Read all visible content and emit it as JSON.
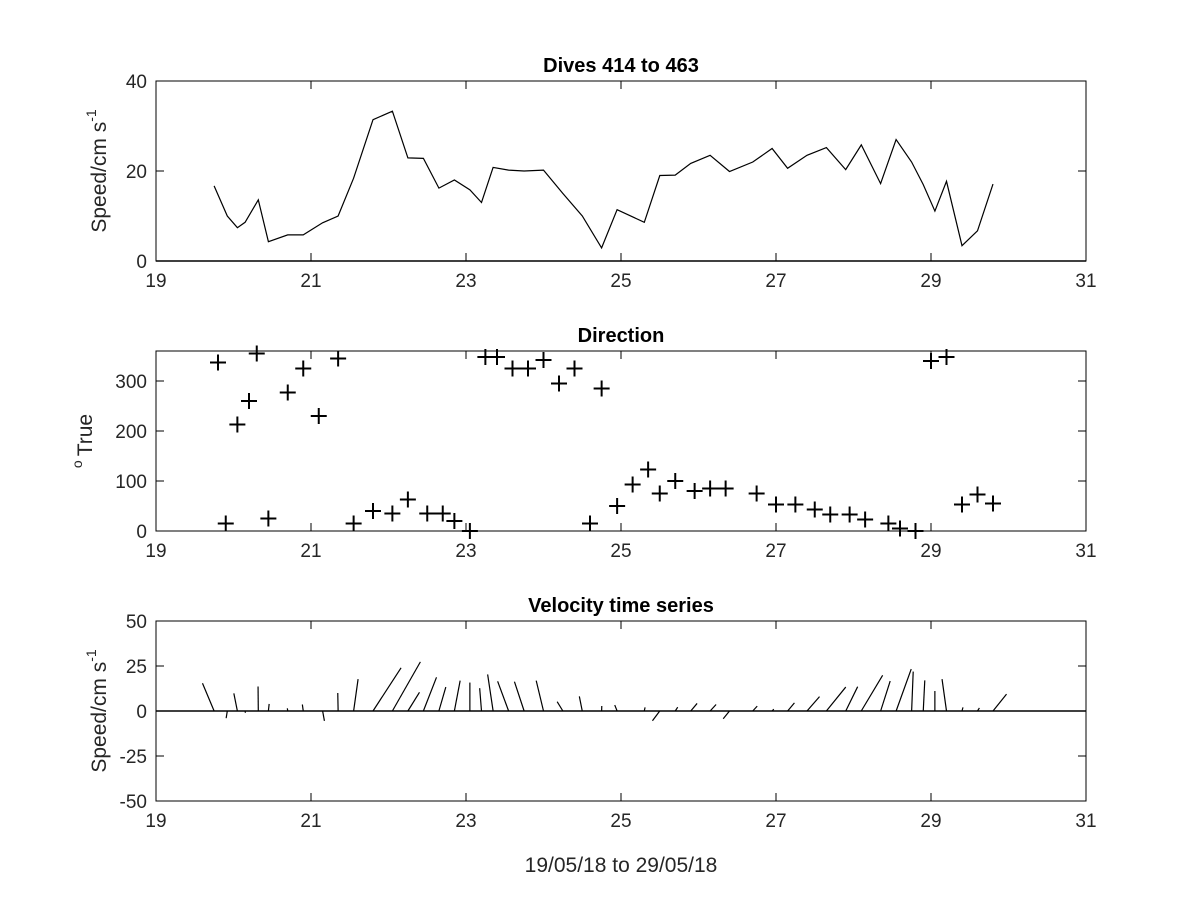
{
  "chart_data": [
    {
      "type": "line",
      "title": "Dives 414 to 463",
      "ylabel": "Speed/cm s",
      "ylabel_sup": "-1",
      "xlim": [
        19,
        31
      ],
      "ylim": [
        0,
        40
      ],
      "xticks": [
        "19",
        "21",
        "23",
        "25",
        "27",
        "29",
        "31"
      ],
      "yticks": [
        "0",
        "20",
        "40"
      ],
      "zero_line": true,
      "x": [
        19.75,
        19.92,
        20.05,
        20.15,
        20.32,
        20.45,
        20.7,
        20.9,
        21.15,
        21.35,
        21.55,
        21.8,
        22.05,
        22.25,
        22.45,
        22.65,
        22.85,
        23.05,
        23.2,
        23.35,
        23.55,
        23.75,
        24.0,
        24.25,
        24.5,
        24.75,
        24.95,
        25.3,
        25.5,
        25.7,
        25.9,
        26.15,
        26.4,
        26.7,
        26.95,
        27.15,
        27.4,
        27.65,
        27.9,
        28.1,
        28.35,
        28.55,
        28.75,
        28.9,
        29.05,
        29.2,
        29.4,
        29.6,
        29.8
      ],
      "y": [
        16.7,
        10.0,
        7.4,
        8.6,
        13.6,
        4.3,
        5.8,
        5.8,
        8.5,
        10.0,
        18.4,
        31.4,
        33.3,
        22.9,
        22.8,
        16.2,
        18.0,
        15.8,
        13.0,
        20.8,
        20.2,
        20.0,
        20.2,
        15.0,
        10.0,
        2.9,
        11.4,
        8.6,
        19.0,
        19.1,
        21.7,
        23.5,
        19.9,
        22.0,
        25.0,
        20.6,
        23.5,
        25.2,
        20.3,
        25.8,
        17.2,
        27.0,
        22.0,
        17.0,
        11.1,
        17.7,
        3.4,
        6.7,
        17.1
      ]
    },
    {
      "type": "scatter",
      "title": "Direction",
      "ylabel": "True",
      "ylabel_pre": "o",
      "xlim": [
        19,
        31
      ],
      "ylim": [
        0,
        360
      ],
      "xticks": [
        "19",
        "21",
        "23",
        "25",
        "27",
        "29",
        "31"
      ],
      "yticks": [
        "0",
        "100",
        "200",
        "300"
      ],
      "marker": "+",
      "x": [
        19.8,
        19.9,
        20.05,
        20.2,
        20.3,
        20.45,
        20.7,
        20.9,
        21.1,
        21.35,
        21.55,
        21.8,
        22.05,
        22.25,
        22.5,
        22.7,
        22.85,
        23.05,
        23.25,
        23.4,
        23.6,
        23.8,
        24.0,
        24.2,
        24.4,
        24.6,
        24.75,
        24.95,
        25.15,
        25.35,
        25.5,
        25.7,
        25.95,
        26.15,
        26.35,
        26.75,
        27.0,
        27.25,
        27.5,
        27.7,
        27.95,
        28.15,
        28.45,
        28.6,
        28.8,
        29.0,
        29.2,
        29.4,
        29.6,
        29.8
      ],
      "y": [
        337,
        15,
        213,
        260,
        355,
        25,
        277,
        325,
        230,
        345,
        15,
        40,
        35,
        63,
        35,
        35,
        20,
        0,
        348,
        348,
        325,
        325,
        342,
        295,
        325,
        15,
        285,
        50,
        93,
        123,
        75,
        100,
        80,
        85,
        85,
        75,
        53,
        53,
        43,
        33,
        33,
        23,
        15,
        5,
        0,
        340,
        348,
        53,
        73,
        55
      ]
    },
    {
      "type": "stick",
      "title": "Velocity time series",
      "ylabel": "Speed/cm s",
      "ylabel_sup": "-1",
      "xlabel": "19/05/18 to 29/05/18",
      "xlim": [
        19,
        31
      ],
      "ylim": [
        -50,
        50
      ],
      "xticks": [
        "19",
        "21",
        "23",
        "25",
        "27",
        "29",
        "31"
      ],
      "yticks": [
        "50",
        "25",
        "0",
        "-25",
        "-50"
      ],
      "zero_line": true,
      "sticks": [
        {
          "x": 19.75,
          "u": -0.42,
          "v": 15.4
        },
        {
          "x": 19.92,
          "u": 0.16,
          "v": -4.0
        },
        {
          "x": 20.05,
          "u": -0.2,
          "v": 9.8
        },
        {
          "x": 20.15,
          "u": -0.13,
          "v": -1.0
        },
        {
          "x": 20.32,
          "u": -0.01,
          "v": 13.6
        },
        {
          "x": 20.45,
          "u": 0.11,
          "v": 3.9
        },
        {
          "x": 20.7,
          "u": -0.16,
          "v": 1.5
        },
        {
          "x": 20.9,
          "u": -0.14,
          "v": 3.6
        },
        {
          "x": 21.15,
          "u": -0.18,
          "v": -5.5
        },
        {
          "x": 21.35,
          "u": -0.02,
          "v": 10.0
        },
        {
          "x": 21.55,
          "u": 0.14,
          "v": 17.7
        },
        {
          "x": 21.8,
          "u": 0.65,
          "v": 24.0
        },
        {
          "x": 22.05,
          "u": 0.57,
          "v": 27.3
        },
        {
          "x": 22.25,
          "u": 0.62,
          "v": 10.4
        },
        {
          "x": 22.45,
          "u": 0.39,
          "v": 18.7
        },
        {
          "x": 22.65,
          "u": 0.29,
          "v": 13.3
        },
        {
          "x": 22.85,
          "u": 0.19,
          "v": 16.9
        },
        {
          "x": 23.05,
          "u": 0.0,
          "v": 15.8
        },
        {
          "x": 23.2,
          "u": -0.08,
          "v": 12.7
        },
        {
          "x": 23.35,
          "u": -0.15,
          "v": 20.3
        },
        {
          "x": 23.55,
          "u": -0.37,
          "v": 16.5
        },
        {
          "x": 23.75,
          "u": -0.33,
          "v": 16.3
        },
        {
          "x": 24.0,
          "u": -0.24,
          "v": 16.9
        },
        {
          "x": 24.25,
          "u": -0.61,
          "v": 5.2
        },
        {
          "x": 24.5,
          "u": -0.2,
          "v": 8.1
        },
        {
          "x": 24.75,
          "u": 0.03,
          "v": 2.8
        },
        {
          "x": 24.95,
          "u": -0.4,
          "v": 3.3
        },
        {
          "x": 25.3,
          "u": 0.23,
          "v": 2.0
        },
        {
          "x": 25.5,
          "u": 0.75,
          "v": -5.4
        },
        {
          "x": 25.7,
          "u": 0.65,
          "v": 2.1
        },
        {
          "x": 25.9,
          "u": 0.84,
          "v": 4.2
        },
        {
          "x": 26.15,
          "u": 0.92,
          "v": 3.6
        },
        {
          "x": 26.4,
          "u": 0.81,
          "v": -4.3
        },
        {
          "x": 26.7,
          "u": 0.92,
          "v": 2.7
        },
        {
          "x": 26.95,
          "u": 0.9,
          "v": 1.0
        },
        {
          "x": 27.15,
          "u": 0.84,
          "v": 4.5
        },
        {
          "x": 27.4,
          "u": 0.87,
          "v": 8.0
        },
        {
          "x": 27.65,
          "u": 0.81,
          "v": 13.3
        },
        {
          "x": 27.9,
          "u": 0.49,
          "v": 13.5
        },
        {
          "x": 28.1,
          "u": 0.6,
          "v": 19.8
        },
        {
          "x": 28.35,
          "u": 0.32,
          "v": 16.6
        },
        {
          "x": 28.55,
          "u": 0.36,
          "v": 23.3
        },
        {
          "x": 28.75,
          "u": 0.04,
          "v": 21.9
        },
        {
          "x": 28.9,
          "u": 0.05,
          "v": 17.0
        },
        {
          "x": 29.05,
          "u": 0.0,
          "v": 11.1
        },
        {
          "x": 29.2,
          "u": -0.14,
          "v": 17.7
        },
        {
          "x": 29.4,
          "u": 0.27,
          "v": 2.0
        },
        {
          "x": 29.6,
          "u": 0.62,
          "v": 1.7
        },
        {
          "x": 29.8,
          "u": 0.8,
          "v": 9.4
        }
      ]
    }
  ]
}
